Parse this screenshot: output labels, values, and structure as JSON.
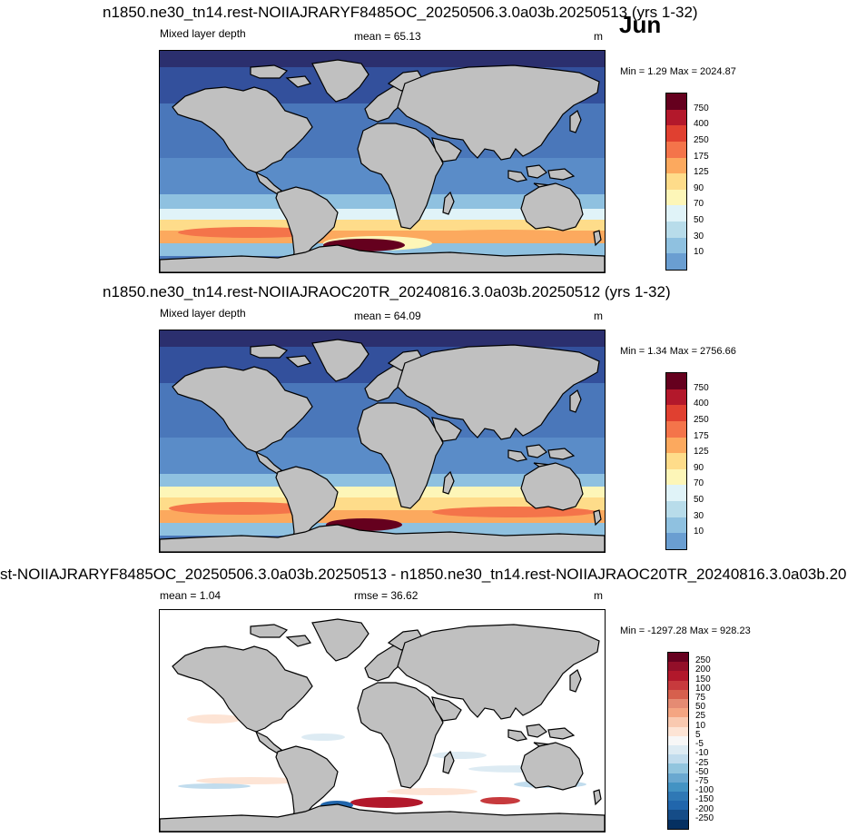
{
  "month": "Jun",
  "panels": [
    {
      "title": "n1850.ne30_tn14.rest-NOIIAJRARYF8485OC_20250506.3.0a03b.20250513 (yrs 1-32)",
      "left_label": "Mixed layer depth",
      "center_label": "mean =  65.13",
      "units": "m",
      "minmax": "Min =   1.29 Max = 2024.87",
      "colorbar_labels": [
        "750",
        "400",
        "250",
        "175",
        "125",
        "90",
        "70",
        "50",
        "30",
        "10"
      ]
    },
    {
      "title": "n1850.ne30_tn14.rest-NOIIAJRAOC20TR_20240816.3.0a03b.20250512 (yrs 1-32)",
      "left_label": "Mixed layer depth",
      "center_label": "mean =  64.09",
      "units": "m",
      "minmax": "Min =   1.34 Max = 2756.66",
      "colorbar_labels": [
        "750",
        "400",
        "250",
        "175",
        "125",
        "90",
        "70",
        "50",
        "30",
        "10"
      ]
    },
    {
      "title": "st-NOIIAJRARYF8485OC_20250506.3.0a03b.20250513 - n1850.ne30_tn14.rest-NOIIAJRAOC20TR_20240816.3.0a03b.20",
      "left_label": "mean =   1.04",
      "center_label": "rmse =  36.62",
      "units": "m",
      "minmax": "Min = -1297.28 Max = 928.23",
      "colorbar_labels": [
        "250",
        "200",
        "150",
        "100",
        "75",
        "50",
        "25",
        "10",
        "5",
        "-5",
        "-10",
        "-25",
        "-50",
        "-75",
        "-100",
        "-150",
        "-200",
        "-250"
      ]
    }
  ],
  "colors": {
    "abs_scale": [
      "#65001e",
      "#b3182b",
      "#e04030",
      "#f4744a",
      "#fca95e",
      "#fedc8a",
      "#fdf6b8",
      "#e0f3f8",
      "#b8dcea",
      "#8fc1e0",
      "#6a9ed1",
      "#4a77ba",
      "#33509c",
      "#2b2f6e"
    ],
    "diff_scale": [
      "#67001f",
      "#930f29",
      "#b2182b",
      "#c73a3d",
      "#d6604d",
      "#e58b73",
      "#f4a582",
      "#f9c9b0",
      "#fde4d5",
      "#f7f7f7",
      "#ddebf3",
      "#c1dced",
      "#92c5de",
      "#6aa8d0",
      "#4393c3",
      "#2f78b5",
      "#2166ac",
      "#154c87",
      "#053061"
    ],
    "land": "#c0c0c0"
  }
}
